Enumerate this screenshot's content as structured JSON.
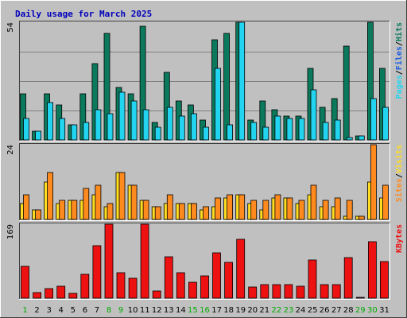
{
  "title": "Daily usage for March 2025",
  "colors": {
    "pages": "#0b7a5c",
    "files": "#22d4f0",
    "hits": "#0b7a5c",
    "visits": "#ffdd22",
    "sites": "#ff8a1e",
    "kbytes": "#ee1111",
    "panel_bg": "#c0c0c0",
    "weekend_label": "#00aa00",
    "weekday_label": "#000000"
  },
  "chart_data": [
    {
      "type": "bar",
      "title": "Daily usage for March 2025",
      "legend": [
        "Pages",
        "/",
        "Files",
        "/",
        "Hits"
      ],
      "legend_colors": [
        "#22d4f0",
        "#000000",
        "#1a5ce0",
        "#000000",
        "#0b7a5c"
      ],
      "ymax_label": "54",
      "ylim": [
        0,
        54
      ],
      "grid": true,
      "categories": [
        "1",
        "2",
        "3",
        "4",
        "5",
        "6",
        "7",
        "8",
        "9",
        "10",
        "11",
        "12",
        "13",
        "14",
        "15",
        "16",
        "17",
        "18",
        "19",
        "20",
        "21",
        "22",
        "23",
        "24",
        "25",
        "26",
        "27",
        "28",
        "29",
        "30",
        "31"
      ],
      "weekend_days": [
        "1",
        "8",
        "9",
        "15",
        "16",
        "22",
        "23",
        "29",
        "30"
      ],
      "series": [
        {
          "name": "Hits",
          "color": "#0b7a5c",
          "values": [
            21,
            4,
            21,
            16,
            7,
            21,
            35,
            49,
            24,
            21,
            52,
            8,
            31,
            18,
            16,
            9,
            46,
            49,
            54,
            9,
            18,
            14,
            11,
            11,
            33,
            15,
            19,
            43,
            2,
            54,
            33
          ]
        },
        {
          "name": "Files",
          "color": "#22d4f0",
          "values": [
            10,
            4,
            17,
            10,
            7,
            8,
            14,
            12,
            22,
            18,
            14,
            6,
            15,
            11,
            12,
            6,
            33,
            7,
            54,
            8,
            6,
            11,
            10,
            10,
            23,
            8,
            9,
            1,
            2,
            19,
            15
          ]
        },
        {
          "name": "Pages",
          "color": "#22d4f0",
          "values": [
            10,
            4,
            17,
            10,
            7,
            8,
            14,
            12,
            22,
            18,
            14,
            6,
            15,
            11,
            12,
            6,
            33,
            7,
            54,
            8,
            6,
            11,
            10,
            10,
            23,
            8,
            9,
            1,
            2,
            19,
            15
          ]
        }
      ]
    },
    {
      "type": "bar",
      "legend": [
        "Sites",
        "/",
        "Visits"
      ],
      "legend_colors": [
        "#ff8a1e",
        "#000000",
        "#ffdd22"
      ],
      "ymax_label": "24",
      "ylim": [
        0,
        24
      ],
      "categories": [
        "1",
        "2",
        "3",
        "4",
        "5",
        "6",
        "7",
        "8",
        "9",
        "10",
        "11",
        "12",
        "13",
        "14",
        "15",
        "16",
        "17",
        "18",
        "19",
        "20",
        "21",
        "22",
        "23",
        "24",
        "25",
        "26",
        "27",
        "28",
        "29",
        "30",
        "31"
      ],
      "series": [
        {
          "name": "Visits",
          "color": "#ffdd22",
          "values": [
            5,
            3,
            12,
            5,
            6,
            6,
            8,
            4,
            15,
            11,
            6,
            4,
            5,
            5,
            5,
            3,
            4,
            7,
            8,
            5,
            3,
            7,
            7,
            5,
            8,
            4,
            4,
            1,
            1,
            12,
            7
          ]
        },
        {
          "name": "Sites",
          "color": "#ff8a1e",
          "values": [
            8,
            3,
            15,
            6,
            6,
            10,
            11,
            5,
            15,
            11,
            6,
            4,
            8,
            5,
            5,
            4,
            7,
            8,
            8,
            6,
            6,
            8,
            7,
            6,
            11,
            6,
            7,
            6,
            1,
            24,
            11
          ]
        }
      ]
    },
    {
      "type": "bar",
      "legend": [
        "KBytes"
      ],
      "legend_colors": [
        "#ee1111"
      ],
      "ymax_label": "169",
      "ylim": [
        0,
        169
      ],
      "categories": [
        "1",
        "2",
        "3",
        "4",
        "5",
        "6",
        "7",
        "8",
        "9",
        "10",
        "11",
        "12",
        "13",
        "14",
        "15",
        "16",
        "17",
        "18",
        "19",
        "20",
        "21",
        "22",
        "23",
        "24",
        "25",
        "26",
        "27",
        "28",
        "29",
        "30",
        "31"
      ],
      "series": [
        {
          "name": "KBytes",
          "color": "#ee1111",
          "values": [
            72,
            12,
            21,
            27,
            11,
            54,
            120,
            169,
            59,
            46,
            169,
            17,
            95,
            58,
            36,
            50,
            104,
            81,
            135,
            26,
            31,
            30,
            30,
            27,
            87,
            30,
            30,
            92,
            2,
            129,
            83
          ]
        }
      ]
    }
  ]
}
